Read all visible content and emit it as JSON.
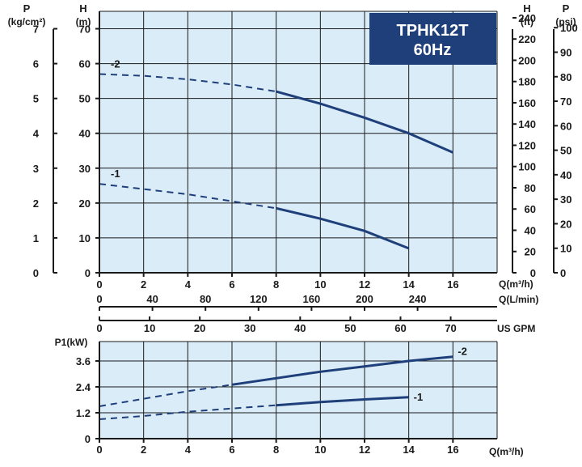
{
  "chart_data": [
    {
      "type": "line",
      "title": "TPHK12T 60Hz",
      "title_lines": [
        "TPHK12T",
        "60Hz"
      ],
      "colors": {
        "plot_bg": "#d9ecf8",
        "curve": "#1f3f7a",
        "title_bg": "#1f3f7a",
        "title_text": "#ffffff"
      },
      "grid": true,
      "x_axis": {
        "label": "Q(m³/h)",
        "range": [
          0,
          18
        ],
        "ticks": [
          0,
          2,
          4,
          6,
          8,
          10,
          12,
          14,
          16
        ]
      },
      "x_axis_lmin": {
        "label": "Q(L/min)",
        "ticks": [
          0,
          40,
          80,
          120,
          160,
          200,
          240
        ]
      },
      "x_axis_gpm": {
        "label": "US GPM",
        "ticks": [
          0,
          10,
          20,
          30,
          40,
          50,
          60,
          70
        ]
      },
      "y_axis_h_m": {
        "label": "H",
        "unit": "(m)",
        "range": [
          0,
          75
        ],
        "ticks": [
          0,
          10,
          20,
          30,
          40,
          50,
          60,
          70
        ]
      },
      "y_axis_p_kg": {
        "label": "P",
        "unit": "(kg/cm²)",
        "ticks": [
          0,
          1,
          2,
          3,
          4,
          5,
          6,
          7
        ]
      },
      "y_axis_h_ft": {
        "label": "H",
        "unit": "(ft)",
        "ticks": [
          0,
          20,
          40,
          60,
          80,
          100,
          120,
          140,
          160,
          180,
          200,
          220,
          240
        ]
      },
      "y_axis_p_psi": {
        "label": "P",
        "unit": "(psi)",
        "ticks": [
          0,
          10,
          20,
          30,
          40,
          50,
          60,
          70,
          80,
          90,
          100
        ]
      },
      "series": [
        {
          "name": "-2",
          "dashed": {
            "x": [
              0,
              2,
              4,
              6,
              8
            ],
            "y": [
              57,
              56.5,
              55.5,
              54,
              52
            ]
          },
          "solid": {
            "x": [
              8,
              10,
              12,
              14,
              16
            ],
            "y": [
              52,
              48.5,
              44.5,
              40,
              34.5
            ]
          }
        },
        {
          "name": "-1",
          "dashed": {
            "x": [
              0,
              2,
              4,
              6,
              8
            ],
            "y": [
              25.5,
              24,
              22.5,
              20.5,
              18.5
            ]
          },
          "solid": {
            "x": [
              8,
              10,
              12,
              14
            ],
            "y": [
              18.5,
              15.5,
              12,
              7
            ]
          }
        }
      ]
    },
    {
      "type": "line",
      "grid": true,
      "x_axis": {
        "label": "Q(m³/h)",
        "range": [
          0,
          18
        ],
        "ticks": [
          0,
          2,
          4,
          6,
          8,
          10,
          12,
          14,
          16
        ]
      },
      "y_axis": {
        "label": "P1(kW)",
        "range": [
          0,
          4.5
        ],
        "ticks": [
          0,
          1.2,
          2.4,
          3.6
        ]
      },
      "series": [
        {
          "name": "-2",
          "dashed": {
            "x": [
              0,
              2,
              4,
              6
            ],
            "y": [
              1.5,
              1.85,
              2.2,
              2.5
            ]
          },
          "solid": {
            "x": [
              6,
              8,
              10,
              12,
              14,
              16
            ],
            "y": [
              2.5,
              2.8,
              3.1,
              3.35,
              3.6,
              3.8
            ]
          }
        },
        {
          "name": "-1",
          "dashed": {
            "x": [
              0,
              2,
              4,
              6,
              8
            ],
            "y": [
              0.9,
              1.05,
              1.25,
              1.4,
              1.55
            ]
          },
          "solid": {
            "x": [
              8,
              10,
              12,
              14
            ],
            "y": [
              1.55,
              1.7,
              1.82,
              1.92
            ]
          }
        }
      ]
    }
  ]
}
